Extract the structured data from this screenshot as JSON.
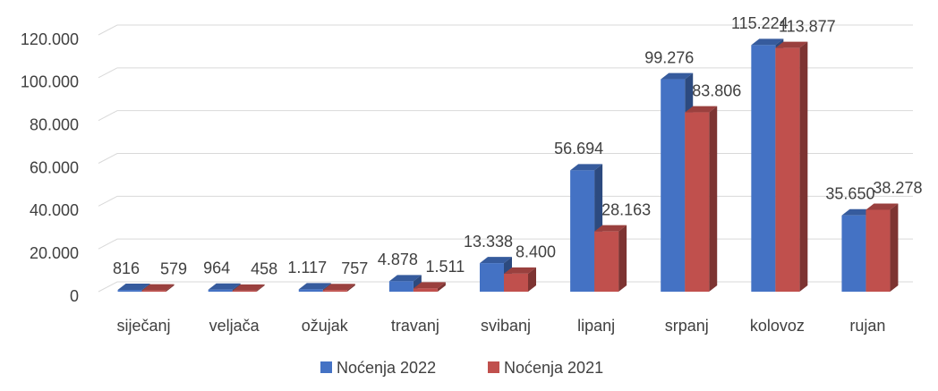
{
  "chart_data": {
    "type": "bar3d",
    "categories": [
      "siječanj",
      "veljača",
      "ožujak",
      "travanj",
      "svibanj",
      "lipanj",
      "srpanj",
      "kolovoz",
      "rujan"
    ],
    "series": [
      {
        "name": "Noćenja 2022",
        "color": "#4472c4",
        "values": [
          816,
          964,
          1117,
          4878,
          13338,
          56694,
          99276,
          115224,
          35650
        ],
        "value_labels": [
          "816",
          "964",
          "1.117",
          "4.878",
          "13.338",
          "56.694",
          "99.276",
          "115.224",
          "35.650"
        ]
      },
      {
        "name": "Noćenja 2021",
        "color": "#c0504d",
        "values": [
          579,
          458,
          757,
          1511,
          8400,
          28163,
          83806,
          113877,
          38278
        ],
        "value_labels": [
          "579",
          "458",
          "757",
          "1.511",
          "8.400",
          "28.163",
          "83.806",
          "113.877",
          "38.278"
        ]
      }
    ],
    "ylim": [
      0,
      120000
    ],
    "yticks": [
      0,
      {
        "value": 20000,
        "label": "20.000"
      },
      {
        "value": 40000,
        "label": "40.000"
      },
      {
        "value": 60000,
        "label": "60.000"
      },
      {
        "value": 80000,
        "label": "80.000"
      },
      {
        "value": 100000,
        "label": "100.000"
      },
      {
        "value": 120000,
        "label": "120.000"
      }
    ],
    "grid": true,
    "legend": "bottom"
  }
}
